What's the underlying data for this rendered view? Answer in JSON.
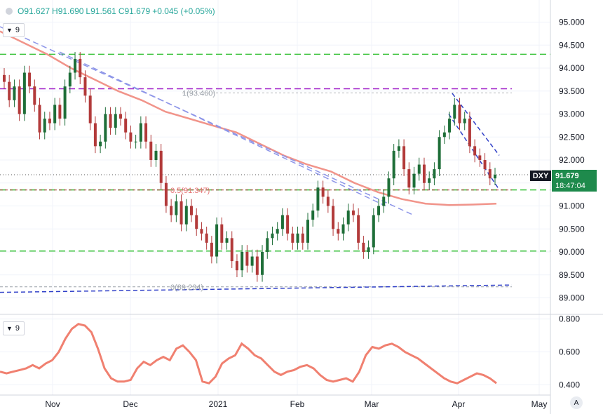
{
  "header": {
    "open": "O91.627",
    "high": "H91.690",
    "low": "L91.561",
    "close": "C91.679",
    "change": "+0.045 (+0.05%)"
  },
  "main_indicator": {
    "label": "9"
  },
  "sub_indicator": {
    "label": "9"
  },
  "last_price": {
    "symbol": "DXY",
    "price": "91.679",
    "countdown": "18:47:04"
  },
  "scale_button": "A",
  "colors": {
    "up": "#1e6e38",
    "down": "#b23a3a",
    "ma": "#f1948a",
    "green_level": "#3ec43e",
    "purple_level": "#a020c8",
    "trend": "#8d95e8",
    "blue_dash": "#3040c8",
    "oscillator": "#f08070"
  },
  "chart_data": [
    {
      "type": "candlestick",
      "ylim": [
        89.0,
        95.0
      ],
      "y_ticks": [
        "95.000",
        "94.500",
        "94.000",
        "93.500",
        "93.000",
        "92.500",
        "92.000",
        "91.500",
        "91.000",
        "90.500",
        "90.000",
        "89.500",
        "89.000"
      ],
      "x_ticks": [
        "Nov",
        "Dec",
        "2021",
        "Feb",
        "Mar",
        "Apr",
        "May"
      ],
      "fib_labels": [
        "1(93.460)",
        "0.5(91.347)",
        "0(89.234)"
      ],
      "closes": [
        93.7,
        93.3,
        93.6,
        93.0,
        93.9,
        93.6,
        93.2,
        92.6,
        92.9,
        92.8,
        93.2,
        92.9,
        93.6,
        93.9,
        94.2,
        93.8,
        93.4,
        92.8,
        92.3,
        92.4,
        93.0,
        92.7,
        93.0,
        92.9,
        92.6,
        92.4,
        92.4,
        92.8,
        92.4,
        92.0,
        92.2,
        91.5,
        91.0,
        90.8,
        91.1,
        90.6,
        91.0,
        90.8,
        90.5,
        90.4,
        90.2,
        89.9,
        90.6,
        90.2,
        90.3,
        89.8,
        89.6,
        90.0,
        89.7,
        89.9,
        89.5,
        90.0,
        90.3,
        90.4,
        90.5,
        90.8,
        90.4,
        90.2,
        90.4,
        90.2,
        90.7,
        90.9,
        91.4,
        91.2,
        91.0,
        90.5,
        90.4,
        90.6,
        90.9,
        90.8,
        90.2,
        90.0,
        90.1,
        90.8,
        91.0,
        91.2,
        91.6,
        92.2,
        92.3,
        91.8,
        91.4,
        91.7,
        91.9,
        91.5,
        91.6,
        91.8,
        92.5,
        92.6,
        92.9,
        93.2,
        92.8,
        92.9,
        92.3,
        92.1,
        92.0,
        91.8,
        91.6,
        91.68
      ],
      "ma_values": [
        94.8,
        94.55,
        94.3,
        94.0,
        93.75,
        93.5,
        93.3,
        93.05,
        92.9,
        92.75,
        92.6,
        92.35,
        92.1,
        91.9,
        91.75,
        91.5,
        91.3,
        91.15,
        91.05,
        91.02,
        91.03,
        91.05
      ]
    },
    {
      "type": "line",
      "ylim": [
        0.36,
        0.8
      ],
      "y_ticks": [
        "0.800",
        "0.600",
        "0.400"
      ],
      "values": [
        0.48,
        0.47,
        0.48,
        0.49,
        0.5,
        0.52,
        0.5,
        0.53,
        0.55,
        0.6,
        0.68,
        0.74,
        0.77,
        0.76,
        0.72,
        0.62,
        0.5,
        0.44,
        0.42,
        0.42,
        0.43,
        0.5,
        0.54,
        0.52,
        0.55,
        0.57,
        0.55,
        0.62,
        0.64,
        0.6,
        0.55,
        0.42,
        0.41,
        0.45,
        0.53,
        0.56,
        0.58,
        0.65,
        0.62,
        0.58,
        0.56,
        0.52,
        0.48,
        0.46,
        0.48,
        0.49,
        0.51,
        0.52,
        0.5,
        0.46,
        0.43,
        0.42,
        0.43,
        0.44,
        0.42,
        0.48,
        0.58,
        0.63,
        0.62,
        0.64,
        0.65,
        0.63,
        0.6,
        0.58,
        0.56,
        0.53,
        0.5,
        0.47,
        0.44,
        0.42,
        0.41,
        0.43,
        0.45,
        0.47,
        0.46,
        0.44,
        0.41
      ]
    }
  ]
}
